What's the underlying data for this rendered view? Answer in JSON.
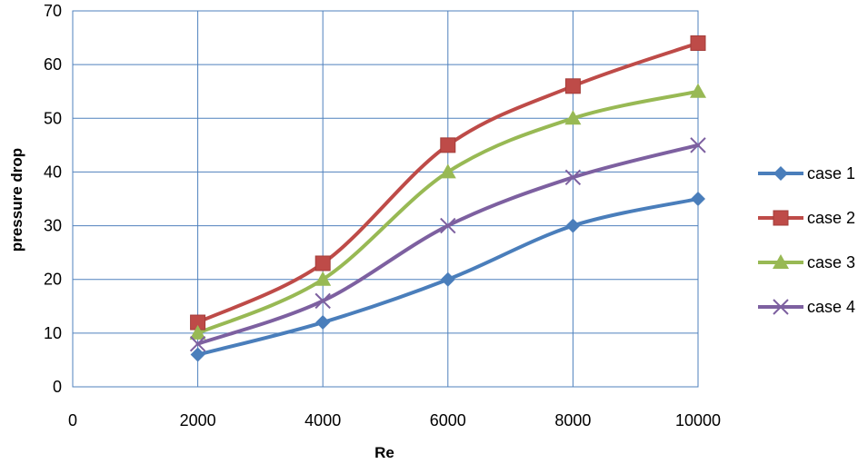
{
  "chart_data": {
    "type": "line",
    "title": "",
    "xlabel": "Re",
    "ylabel": "pressure drop",
    "xlim": [
      0,
      10000
    ],
    "ylim": [
      0,
      70
    ],
    "x_ticks": [
      0,
      2000,
      4000,
      6000,
      8000,
      10000
    ],
    "y_ticks": [
      0,
      10,
      20,
      30,
      40,
      50,
      60,
      70
    ],
    "grid": true,
    "legend_position": "right",
    "x": [
      2000,
      4000,
      6000,
      8000,
      10000
    ],
    "series": [
      {
        "name": "case 1",
        "values": [
          6,
          12,
          20,
          30,
          35
        ],
        "color": "#4a7ebb",
        "marker": "diamond"
      },
      {
        "name": "case 2",
        "values": [
          12,
          23,
          45,
          56,
          64
        ],
        "color": "#be4b48",
        "marker": "square"
      },
      {
        "name": "case 3",
        "values": [
          10,
          20,
          40,
          50,
          55
        ],
        "color": "#98b954",
        "marker": "triangle"
      },
      {
        "name": "case 4",
        "values": [
          8,
          16,
          30,
          39,
          45
        ],
        "color": "#7d60a0",
        "marker": "x"
      }
    ]
  }
}
